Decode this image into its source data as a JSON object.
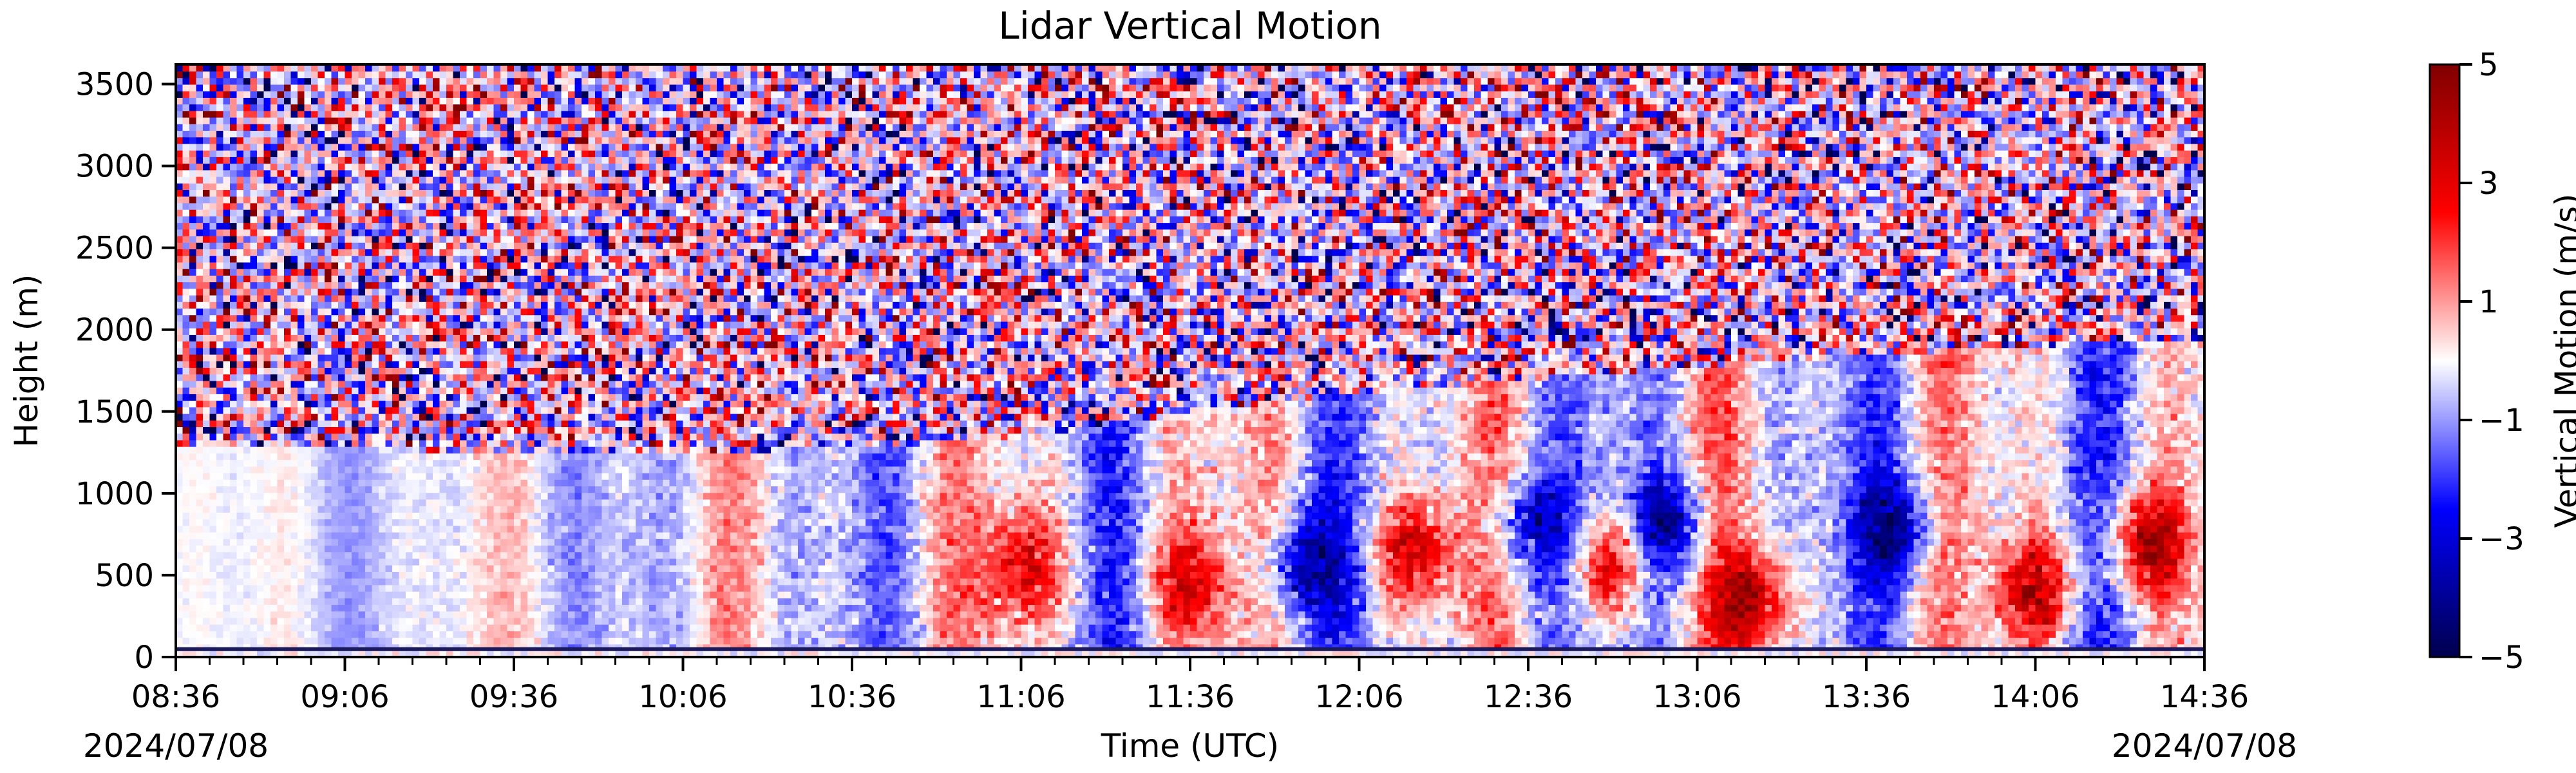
{
  "chart_data": {
    "type": "heatmap",
    "title": "Lidar Vertical Motion",
    "xlabel": "Time (UTC)",
    "ylabel": "Height (m)",
    "x_ticks": [
      "08:36",
      "09:06",
      "09:36",
      "10:06",
      "10:36",
      "11:06",
      "11:36",
      "12:06",
      "12:36",
      "13:06",
      "13:36",
      "14:06",
      "14:36"
    ],
    "x_range_minutes": [
      0,
      360
    ],
    "date_start": "2024/07/08",
    "date_end": "2024/07/08",
    "y_ticks": [
      0,
      500,
      1000,
      1500,
      2000,
      2500,
      3000,
      3500
    ],
    "ylim": [
      0,
      3620
    ],
    "colorbar": {
      "label": "Vertical Motion (m/s)",
      "ticks": [
        5,
        3,
        1,
        -1,
        -3,
        -5
      ],
      "tick_labels": [
        "5",
        "3",
        "1",
        "−1",
        "−3",
        "−5"
      ],
      "range": [
        -5,
        5
      ],
      "colormap": "seismic"
    },
    "colors": {
      "negative": "#00004d",
      "mid": "#ffffff",
      "positive": "#800000"
    },
    "boundary_layer_top_m": [
      1270,
      1270,
      1260,
      1250,
      1280,
      1340,
      1500,
      1620,
      1700,
      1780,
      1850,
      1900,
      1950
    ],
    "noisy_layer_top_m": 3620,
    "features": [
      {
        "t_minutes": 150,
        "h_m": 550,
        "value": 3.5
      },
      {
        "t_minutes": 180,
        "h_m": 450,
        "value": 2.8
      },
      {
        "t_minutes": 200,
        "h_m": 550,
        "value": -3.0
      },
      {
        "t_minutes": 220,
        "h_m": 650,
        "value": 3.8
      },
      {
        "t_minutes": 240,
        "h_m": 800,
        "value": -3.0
      },
      {
        "t_minutes": 255,
        "h_m": 550,
        "value": 3.5
      },
      {
        "t_minutes": 265,
        "h_m": 800,
        "value": -3.5
      },
      {
        "t_minutes": 280,
        "h_m": 350,
        "value": 4.0
      },
      {
        "t_minutes": 305,
        "h_m": 800,
        "value": -3.2
      },
      {
        "t_minutes": 330,
        "h_m": 400,
        "value": 3.8
      },
      {
        "t_minutes": 350,
        "h_m": 700,
        "value": 4.2
      }
    ]
  }
}
